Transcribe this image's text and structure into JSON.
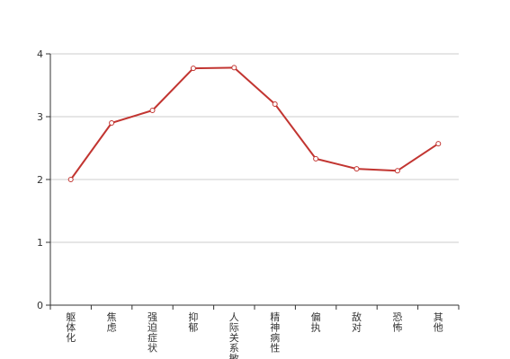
{
  "chart_data": {
    "type": "line",
    "categories": [
      "躯体化",
      "焦虑",
      "强迫症状",
      "抑郁",
      "人际关系敏感",
      "精神病性",
      "偏执",
      "敌对",
      "恐怖",
      "其他"
    ],
    "series": [
      {
        "values": [
          2.0,
          2.9,
          3.1,
          3.77,
          3.78,
          3.2,
          2.33,
          2.17,
          2.14,
          2.57
        ]
      }
    ],
    "yticks": [
      0,
      1,
      2,
      3,
      4
    ],
    "ylim": [
      0,
      4
    ],
    "grid": true,
    "colors": {
      "series": "#c23531",
      "axis": "#333333",
      "grid": "#cccccc"
    }
  }
}
